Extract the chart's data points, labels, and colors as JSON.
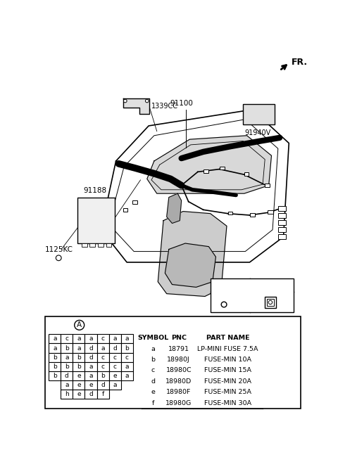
{
  "bg_color": "#ffffff",
  "border_color": "#000000",
  "fr_label": "FR.",
  "fuse_grid": [
    [
      "a",
      "c",
      "a",
      "a",
      "c",
      "a",
      "a"
    ],
    [
      "a",
      "b",
      "a",
      "d",
      "a",
      "d",
      "b"
    ],
    [
      "b",
      "a",
      "b",
      "d",
      "c",
      "c",
      "c"
    ],
    [
      "b",
      "b",
      "b",
      "a",
      "c",
      "c",
      "a"
    ],
    [
      "b",
      "d",
      "e",
      "a",
      "b",
      "e",
      "a"
    ],
    [
      "",
      "a",
      "e",
      "e",
      "d",
      "a",
      ""
    ],
    [
      "",
      "h",
      "e",
      "d",
      "f",
      "",
      ""
    ]
  ],
  "symbol_table": {
    "headers": [
      "SYMBOL",
      "PNC",
      "PART NAME"
    ],
    "rows": [
      [
        "a",
        "18791",
        "LP-MINI FUSE 7.5A"
      ],
      [
        "b",
        "18980J",
        "FUSE-MIN 10A"
      ],
      [
        "c",
        "18980C",
        "FUSE-MIN 15A"
      ],
      [
        "d",
        "18980D",
        "FUSE-MIN 20A"
      ],
      [
        "e",
        "18980F",
        "FUSE-MIN 25A"
      ],
      [
        "f",
        "18980G",
        "FUSE-MIN 30A"
      ]
    ]
  }
}
